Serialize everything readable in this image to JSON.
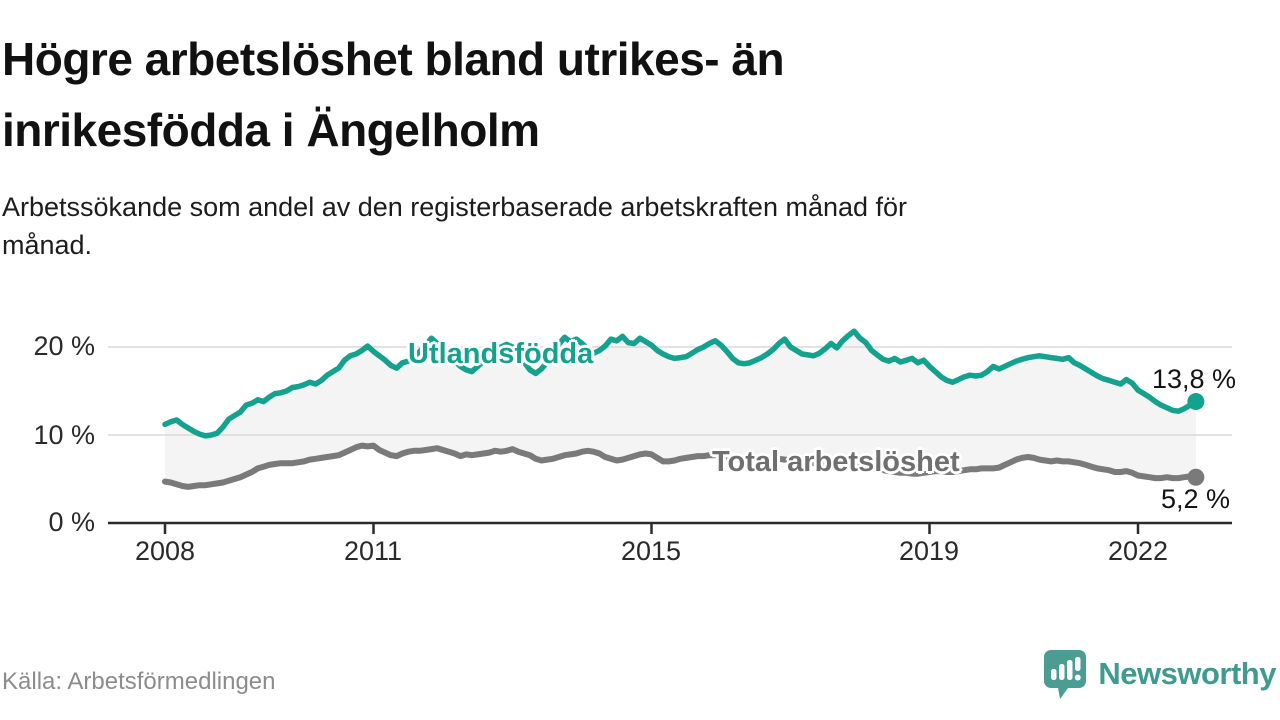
{
  "header": {
    "title_lines": [
      "Högre arbetslöshet bland utrikes- än",
      "inrikesfödda i Ängelholm"
    ],
    "subtitle_lines": [
      "Arbetssökande som andel av den registerbaserade arbetskraften månad för",
      "månad."
    ]
  },
  "footer": {
    "source": "Källa: Arbetsförmedlingen",
    "brand": "Newsworthy",
    "brand_color": "#3f9a8f",
    "brand_icon": "speech-bubble-bar-chart"
  },
  "chart_data": {
    "type": "line",
    "title": "Högre arbetslöshet bland utrikes- än inrikesfödda i Ängelholm",
    "subtitle": "Arbetssökande som andel av den registerbaserade arbetskraften månad för månad.",
    "xlabel": "",
    "ylabel": "",
    "xlim": [
      2007.8,
      2023.3
    ],
    "ylim": [
      0,
      22.7
    ],
    "grid": "horizontal",
    "grid_values": [
      10,
      20
    ],
    "x_ticks": [
      2008,
      2011,
      2015,
      2019,
      2022
    ],
    "x_tick_labels": [
      "2008",
      "2011",
      "2015",
      "2019",
      "2022"
    ],
    "y_ticks": [
      0,
      10,
      20
    ],
    "y_tick_labels": [
      "0 %",
      "10 %",
      "20 %"
    ],
    "fill_between_series": true,
    "fill_color": "#f4f4f4",
    "axis_color": "#2b2b2b",
    "gridline_color": "#d9d9d9",
    "series": [
      {
        "name": "Utlandsfödda",
        "color": "#14a28f",
        "end_label": "13,8 %",
        "end_value": 13.8,
        "x_start": 2008.0,
        "x_step": 0.08333,
        "values": [
          11.2,
          11.5,
          11.7,
          11.2,
          10.8,
          10.4,
          10.1,
          9.9,
          10.0,
          10.2,
          10.9,
          11.8,
          12.2,
          12.6,
          13.4,
          13.6,
          14.0,
          13.8,
          14.3,
          14.7,
          14.8,
          15.0,
          15.4,
          15.5,
          15.7,
          16.0,
          15.8,
          16.2,
          16.8,
          17.2,
          17.6,
          18.5,
          19.0,
          19.2,
          19.6,
          20.1,
          19.5,
          19.0,
          18.5,
          17.9,
          17.6,
          18.2,
          18.4,
          18.9,
          19.5,
          20.2,
          21.0,
          20.4,
          19.8,
          19.2,
          18.4,
          17.8,
          17.4,
          17.2,
          17.8,
          18.4,
          19.0,
          19.6,
          20.0,
          20.3,
          20.0,
          19.3,
          18.3,
          17.4,
          17.0,
          17.5,
          18.3,
          19.2,
          20.3,
          21.1,
          20.6,
          20.9,
          20.4,
          19.8,
          19.3,
          19.6,
          20.1,
          20.9,
          20.7,
          21.2,
          20.5,
          20.4,
          21.0,
          20.6,
          20.2,
          19.6,
          19.2,
          18.9,
          18.7,
          18.8,
          18.9,
          19.3,
          19.7,
          20.0,
          20.4,
          20.7,
          20.2,
          19.5,
          18.7,
          18.2,
          18.1,
          18.2,
          18.5,
          18.8,
          19.2,
          19.7,
          20.4,
          20.9,
          20.0,
          19.6,
          19.2,
          19.1,
          19.0,
          19.3,
          19.8,
          20.4,
          19.9,
          20.7,
          21.3,
          21.8,
          21.0,
          20.5,
          19.6,
          19.1,
          18.6,
          18.4,
          18.7,
          18.3,
          18.5,
          18.7,
          18.2,
          18.5,
          17.8,
          17.2,
          16.6,
          16.2,
          16.0,
          16.3,
          16.6,
          16.8,
          16.7,
          16.8,
          17.2,
          17.8,
          17.5,
          17.8,
          18.1,
          18.4,
          18.6,
          18.8,
          18.9,
          19.0,
          18.9,
          18.8,
          18.7,
          18.6,
          18.8,
          18.2,
          17.9,
          17.5,
          17.1,
          16.7,
          16.4,
          16.2,
          16.0,
          15.8,
          16.3,
          15.9,
          15.1,
          14.7,
          14.3,
          13.8,
          13.4,
          13.1,
          12.8,
          12.7,
          13.0,
          13.4,
          13.8
        ]
      },
      {
        "name": "Total arbetslöshet",
        "color": "#7a7a7a",
        "end_label": "5,2 %",
        "end_value": 5.2,
        "x_start": 2008.0,
        "x_step": 0.08333,
        "values": [
          4.7,
          4.6,
          4.4,
          4.2,
          4.1,
          4.2,
          4.3,
          4.3,
          4.4,
          4.5,
          4.6,
          4.8,
          5.0,
          5.2,
          5.5,
          5.8,
          6.2,
          6.4,
          6.6,
          6.7,
          6.8,
          6.8,
          6.8,
          6.9,
          7.0,
          7.2,
          7.3,
          7.4,
          7.5,
          7.6,
          7.7,
          8.0,
          8.3,
          8.6,
          8.8,
          8.7,
          8.8,
          8.3,
          8.0,
          7.7,
          7.6,
          7.9,
          8.1,
          8.2,
          8.2,
          8.3,
          8.4,
          8.5,
          8.3,
          8.1,
          7.9,
          7.6,
          7.8,
          7.7,
          7.8,
          7.9,
          8.0,
          8.2,
          8.1,
          8.2,
          8.4,
          8.1,
          7.9,
          7.7,
          7.3,
          7.1,
          7.2,
          7.3,
          7.5,
          7.7,
          7.8,
          7.9,
          8.1,
          8.2,
          8.1,
          7.9,
          7.5,
          7.3,
          7.1,
          7.2,
          7.4,
          7.6,
          7.8,
          7.9,
          7.8,
          7.4,
          7.0,
          7.0,
          7.1,
          7.3,
          7.4,
          7.5,
          7.6,
          7.6,
          7.7,
          7.7,
          7.6,
          7.5,
          7.4,
          7.3,
          7.2,
          7.1,
          7.1,
          7.2,
          7.2,
          7.3,
          7.3,
          7.2,
          7.2,
          7.1,
          7.0,
          6.9,
          6.8,
          6.7,
          6.7,
          6.6,
          6.6,
          6.5,
          6.5,
          6.4,
          6.4,
          6.3,
          6.2,
          6.1,
          6.0,
          5.9,
          5.8,
          5.7,
          5.7,
          5.6,
          5.6,
          5.7,
          5.8,
          5.9,
          5.9,
          5.8,
          5.8,
          5.9,
          6.0,
          6.1,
          6.1,
          6.2,
          6.2,
          6.2,
          6.3,
          6.6,
          6.9,
          7.2,
          7.4,
          7.5,
          7.4,
          7.2,
          7.1,
          7.0,
          7.1,
          7.0,
          7.0,
          6.9,
          6.8,
          6.6,
          6.4,
          6.2,
          6.1,
          6.0,
          5.8,
          5.8,
          5.9,
          5.7,
          5.4,
          5.3,
          5.2,
          5.1,
          5.1,
          5.2,
          5.1,
          5.1,
          5.2,
          5.3,
          5.2
        ]
      }
    ]
  }
}
